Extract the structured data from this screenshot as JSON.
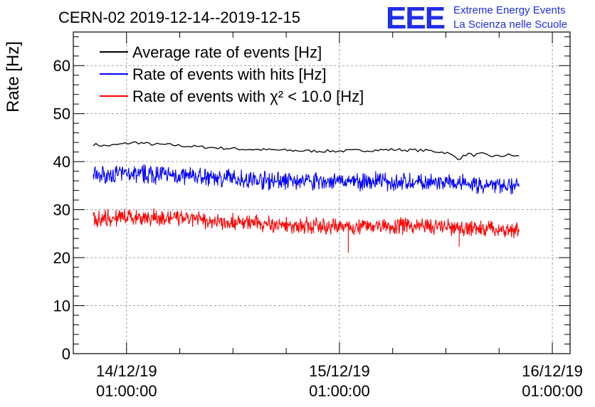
{
  "header": {
    "title": "CERN-02 2019-12-14--2019-12-15",
    "logo_mark": "EEE",
    "logo_line1": "Extreme Energy Events",
    "logo_line2": "La Scienza nelle Scuole"
  },
  "colors": {
    "average": "#000000",
    "hits": "#0000ff",
    "chi2": "#ff0000",
    "grid": "#a0a0a0",
    "logo": "#1f2ee8"
  },
  "chart_data": {
    "type": "line",
    "title": "CERN-02 2019-12-14--2019-12-15",
    "ylabel": "Rate [Hz]",
    "xlabel": "",
    "ylim": [
      0,
      67
    ],
    "xlim": [
      "2019-12-13T19:00:00",
      "2019-12-16T03:00:00"
    ],
    "grid": true,
    "legend_position": "top-left",
    "yticks": [
      "0",
      "10",
      "20",
      "30",
      "40",
      "50",
      "60"
    ],
    "xticks": [
      {
        "date": "14/12/19",
        "time": "01:00:00"
      },
      {
        "date": "15/12/19",
        "time": "01:00:00"
      },
      {
        "date": "16/12/19",
        "time": "01:00:00"
      }
    ],
    "series": [
      {
        "name": "Average rate of events [Hz]",
        "color": "#000000",
        "noise": 0.3,
        "x": [
          "2019-12-13T21:15",
          "2019-12-13T22:30",
          "2019-12-13T23:30",
          "2019-12-14T01:00",
          "2019-12-14T02:00",
          "2019-12-14T04:00",
          "2019-12-14T06:00",
          "2019-12-14T08:00",
          "2019-12-14T10:00",
          "2019-12-14T12:00",
          "2019-12-14T14:00",
          "2019-12-14T16:00",
          "2019-12-14T18:00",
          "2019-12-14T20:00",
          "2019-12-14T22:00",
          "2019-12-15T01:00",
          "2019-12-15T03:00",
          "2019-12-15T05:00",
          "2019-12-15T07:00",
          "2019-12-15T09:00",
          "2019-12-15T11:00",
          "2019-12-15T13:00",
          "2019-12-15T14:30",
          "2019-12-15T15:30",
          "2019-12-15T16:00",
          "2019-12-15T17:00",
          "2019-12-15T18:00",
          "2019-12-15T19:00",
          "2019-12-15T20:00",
          "2019-12-15T21:15"
        ],
        "values": [
          43.6,
          43.3,
          43.4,
          43.8,
          44.0,
          43.6,
          43.5,
          43.2,
          43.0,
          42.8,
          42.6,
          42.5,
          42.4,
          42.3,
          42.2,
          42.2,
          42.3,
          42.4,
          42.5,
          42.4,
          42.3,
          41.9,
          40.6,
          41.7,
          41.3,
          41.6,
          41.2,
          41.1,
          41.4,
          41.1
        ]
      },
      {
        "name": "Rate of events with hits [Hz]",
        "color": "#0000ff",
        "noise": 2.2,
        "x": [
          "2019-12-13T21:15",
          "2019-12-14T00:00",
          "2019-12-14T02:00",
          "2019-12-14T06:00",
          "2019-12-14T10:00",
          "2019-12-14T14:00",
          "2019-12-14T18:00",
          "2019-12-14T22:00",
          "2019-12-15T02:00",
          "2019-12-15T06:00",
          "2019-12-15T10:00",
          "2019-12-15T14:00",
          "2019-12-15T18:00",
          "2019-12-15T21:15"
        ],
        "values": [
          37.2,
          37.3,
          37.5,
          37.2,
          36.8,
          36.4,
          36.0,
          35.9,
          35.8,
          35.9,
          35.6,
          35.4,
          35.0,
          35.0
        ]
      },
      {
        "name": "Rate of events with χ² < 10.0 [Hz]",
        "color": "#ff0000",
        "noise": 2.0,
        "x": [
          "2019-12-13T21:15",
          "2019-12-14T00:00",
          "2019-12-14T02:00",
          "2019-12-14T06:00",
          "2019-12-14T10:00",
          "2019-12-14T14:00",
          "2019-12-14T18:00",
          "2019-12-14T22:00",
          "2019-12-15T02:00",
          "2019-12-15T06:00",
          "2019-12-15T10:00",
          "2019-12-15T14:00",
          "2019-12-15T18:00",
          "2019-12-15T21:15"
        ],
        "values": [
          28.2,
          28.3,
          28.5,
          28.2,
          27.8,
          27.3,
          26.8,
          26.6,
          26.5,
          26.7,
          26.6,
          26.2,
          26.0,
          25.6
        ],
        "dips": [
          {
            "x": "2019-12-15T02:00",
            "value": 21.0
          },
          {
            "x": "2019-12-15T14:30",
            "value": 22.3
          }
        ]
      }
    ]
  }
}
